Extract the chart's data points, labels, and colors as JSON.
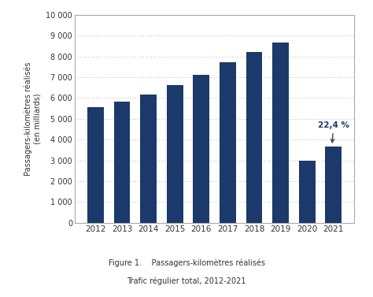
{
  "years": [
    2012,
    2013,
    2014,
    2015,
    2016,
    2017,
    2018,
    2019,
    2020,
    2021
  ],
  "values": [
    5560,
    5830,
    6150,
    6620,
    7100,
    7730,
    8220,
    8670,
    2990,
    3680
  ],
  "bar_color": "#1b3a6b",
  "ylabel_line1": "Passagers-kilomètres réalisés",
  "ylabel_line2": "(en milliards)",
  "ylim": [
    0,
    10000
  ],
  "yticks": [
    0,
    1000,
    2000,
    3000,
    4000,
    5000,
    6000,
    7000,
    8000,
    9000,
    10000
  ],
  "ytick_labels": [
    "0",
    "1 000",
    "2 000",
    "3 000",
    "4 000",
    "5 000",
    "6 000",
    "7 000",
    "8 000",
    "9 000",
    "10 000"
  ],
  "annotation_text": "22,4 %",
  "annotation_color": "#1b3a6b",
  "caption_line1": "Figure 1.    Passagers-kilomètres réalisés",
  "caption_line2": "Trafic régulier total, 2012-2021",
  "background_color": "#ffffff",
  "grid_color_dotted": "#999999",
  "grid_color_light": "#cccccc",
  "box_color": "#aaaaaa"
}
